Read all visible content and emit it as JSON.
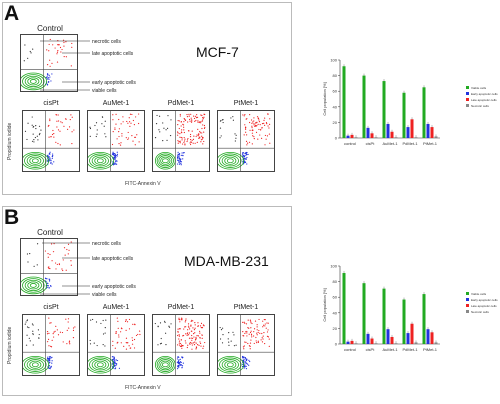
{
  "panels": [
    {
      "letter": "A",
      "cell_line": "MCF-7",
      "control_title": "Control",
      "conditions": [
        "cisPt",
        "AuMet-1",
        "PdMet-1",
        "PtMet-1"
      ],
      "annotations": {
        "necrotic": "necrotic cells",
        "late": "late apoptotic cells",
        "early": "early apoptotic cells",
        "viable": "viable cells"
      },
      "xaxis_label": "FITC-Annexin V",
      "yaxis_label": "Propidium iodide"
    },
    {
      "letter": "B",
      "cell_line": "MDA-MB-231",
      "control_title": "Control",
      "conditions": [
        "cisPt",
        "AuMet-1",
        "PdMet-1",
        "PtMet-1"
      ],
      "annotations": {
        "necrotic": "necrotic cells",
        "late": "late apoptotic cells",
        "early": "early apoptotic cells",
        "viable": "viable cells"
      },
      "xaxis_label": "FITC-Annexin V",
      "yaxis_label": "Propidium iodide"
    }
  ],
  "colors": {
    "viable": "#22aa22",
    "early": "#2233dd",
    "late": "#ee2222",
    "necrotic": "#333333"
  },
  "chart_data": [
    {
      "type": "bar",
      "title": "",
      "xlabel": "",
      "ylabel": "Cell population [%]",
      "ylim": [
        0,
        100
      ],
      "yticks": [
        0,
        20,
        40,
        60,
        80,
        100
      ],
      "categories": [
        "control",
        "cisPt",
        "AuMet-1",
        "PdMet-1",
        "PtMet-1"
      ],
      "series": [
        {
          "name": "Viable cells",
          "color": "#22aa22",
          "values": [
            92,
            80,
            73,
            58,
            65
          ]
        },
        {
          "name": "Early apoptotic cells",
          "color": "#2233dd",
          "values": [
            3,
            13,
            18,
            14,
            18
          ]
        },
        {
          "name": "Late apoptotic cells",
          "color": "#ee2222",
          "values": [
            4,
            6,
            8,
            24,
            14
          ]
        },
        {
          "name": "Necrotic cells",
          "color": "#888888",
          "values": [
            1,
            1,
            1,
            1,
            2
          ]
        }
      ],
      "legend": "right"
    },
    {
      "type": "bar",
      "title": "",
      "xlabel": "",
      "ylabel": "Cell population [%]",
      "ylim": [
        0,
        100
      ],
      "yticks": [
        0,
        20,
        40,
        60,
        80,
        100
      ],
      "categories": [
        "control",
        "cisPt",
        "AuMet-1",
        "PdMet-1",
        "PtMet-1"
      ],
      "series": [
        {
          "name": "Viable cells",
          "color": "#22aa22",
          "values": [
            91,
            78,
            71,
            57,
            64
          ]
        },
        {
          "name": "Early apoptotic cells",
          "color": "#2233dd",
          "values": [
            3,
            13,
            19,
            14,
            19
          ]
        },
        {
          "name": "Late apoptotic cells",
          "color": "#ee2222",
          "values": [
            4,
            7,
            9,
            26,
            15
          ]
        },
        {
          "name": "Necrotic cells",
          "color": "#888888",
          "values": [
            1,
            1,
            1,
            2,
            2
          ]
        }
      ],
      "legend": "right"
    }
  ]
}
